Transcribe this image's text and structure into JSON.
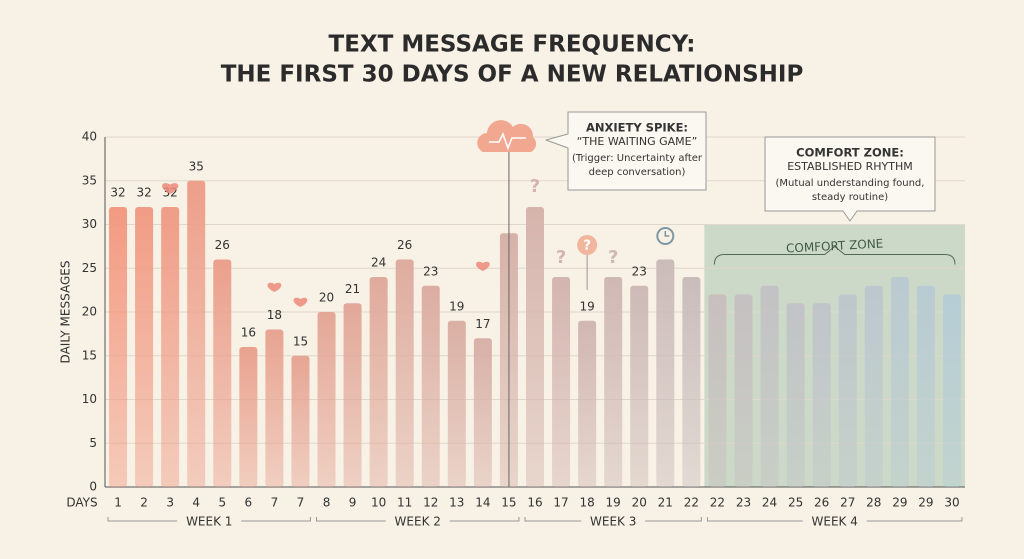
{
  "chart_data": {
    "type": "bar",
    "title": "TEXT MESSAGE FREQUENCY:",
    "subtitle": "THE FIRST 30 DAYS OF A NEW RELATIONSHIP",
    "y_label": "DAILY MESSAGES",
    "x_label": "DAYS",
    "categories": [
      "1",
      "2",
      "3",
      "4",
      "5",
      "6",
      "7",
      "7",
      "8",
      "9",
      "10",
      "11",
      "12",
      "13",
      "14",
      "15",
      "16",
      "17",
      "18",
      "19",
      "20",
      "21",
      "22",
      "22",
      "23",
      "24",
      "25",
      "26",
      "27",
      "28",
      "29",
      "29",
      "30"
    ],
    "values": [
      32,
      32,
      32,
      35,
      26,
      16,
      18,
      15,
      20,
      21,
      24,
      26,
      23,
      19,
      17,
      29,
      32,
      24,
      19,
      24,
      23,
      26,
      24,
      22,
      22,
      23,
      21,
      21,
      22,
      23,
      24,
      23,
      22
    ],
    "value_labels": [
      "32",
      "32",
      "32",
      "35",
      "26",
      "16",
      "18",
      "15",
      "20",
      "21",
      "24",
      "26",
      "23",
      "19",
      "17",
      null,
      null,
      null,
      "19",
      null,
      "23",
      null,
      null,
      null,
      null,
      null,
      null,
      null,
      null,
      null,
      null,
      null,
      null
    ],
    "color_start": "#f39a82",
    "color_end": "#b6cdd6",
    "ylim": [
      0,
      40
    ],
    "yticks": [
      0,
      5,
      10,
      15,
      20,
      25,
      30,
      35,
      40
    ],
    "grid": true,
    "weeks": [
      "WEEK 1",
      "WEEK 2",
      "WEEK 3",
      "WEEK 4"
    ],
    "comfort_band": {
      "label": "COMFORT ZONE",
      "top": 30,
      "color": "#a9c4ae"
    },
    "annotations": {
      "spike": [
        "ANXIETY SPIKE:",
        "“THE WAITING GAME”",
        "(Trigger: Uncertainty after",
        "deep conversation)"
      ],
      "comfort": [
        "COMFORT ZONE:",
        "ESTABLISHED RHYTHM",
        "(Mutual understanding found,",
        "steady routine)"
      ]
    }
  }
}
